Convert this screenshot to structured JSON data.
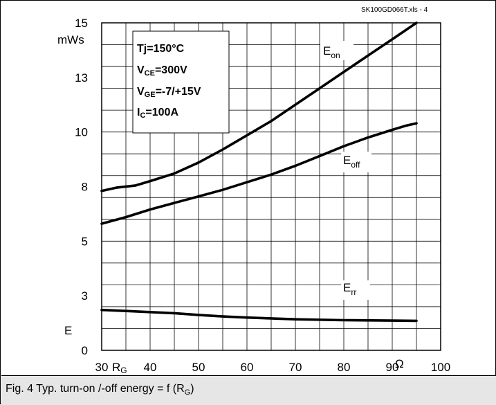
{
  "chart_data": {
    "type": "line",
    "title": "",
    "source_note": "SK100GD066T.xls - 4",
    "xlabel_main": "R",
    "xlabel_sub": "G",
    "x_unit": "Ω",
    "ylabel": "E",
    "y_unit": "mWs",
    "xlim": [
      30,
      100
    ],
    "ylim": [
      0,
      15
    ],
    "x_ticks": [
      "30",
      "40",
      "50",
      "60",
      "70",
      "80",
      "90",
      "100"
    ],
    "y_ticks": [
      "0",
      "3",
      "5",
      "8",
      "10",
      "13",
      "15"
    ],
    "grid": true,
    "conditions": [
      {
        "main": "Tj=150°C",
        "sub": "",
        "rest": ""
      },
      {
        "main": "V",
        "sub": "CE",
        "rest": "=300V"
      },
      {
        "main": "V",
        "sub": "GE",
        "rest": "=-7/+15V"
      },
      {
        "main": "I",
        "sub": "C",
        "rest": "=100A"
      }
    ],
    "series": [
      {
        "name": "E",
        "name_sub": "on",
        "x": [
          30,
          33,
          37,
          40,
          45,
          50,
          55,
          60,
          65,
          70,
          75,
          80,
          85,
          90,
          93,
          95
        ],
        "y": [
          7.3,
          7.45,
          7.55,
          7.75,
          8.1,
          8.6,
          9.2,
          9.85,
          10.5,
          11.25,
          12.0,
          12.75,
          13.5,
          14.25,
          14.7,
          15.0
        ]
      },
      {
        "name": "E",
        "name_sub": "off",
        "x": [
          30,
          35,
          40,
          45,
          50,
          55,
          60,
          65,
          70,
          75,
          80,
          85,
          90,
          93,
          95
        ],
        "y": [
          5.8,
          6.1,
          6.45,
          6.75,
          7.05,
          7.35,
          7.7,
          8.05,
          8.45,
          8.9,
          9.35,
          9.75,
          10.1,
          10.3,
          10.4
        ]
      },
      {
        "name": "E",
        "name_sub": "rr",
        "x": [
          30,
          35,
          40,
          45,
          50,
          55,
          60,
          70,
          80,
          90,
          95
        ],
        "y": [
          1.85,
          1.8,
          1.75,
          1.7,
          1.62,
          1.55,
          1.5,
          1.42,
          1.38,
          1.36,
          1.35
        ]
      }
    ]
  },
  "caption": {
    "text": "Fig. 4 Typ. turn-on /-off energy = f (R",
    "sub": "G",
    "tail": ")"
  }
}
